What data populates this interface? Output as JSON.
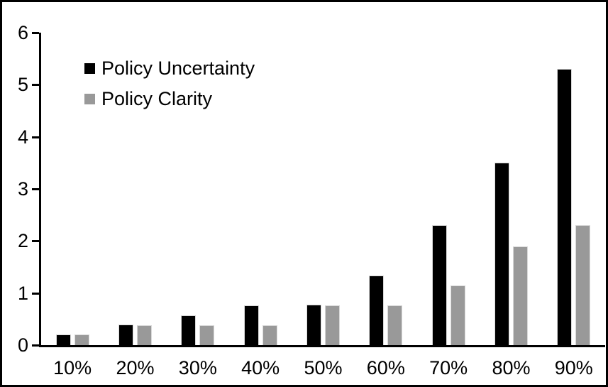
{
  "figure": {
    "background": "#ffffff",
    "frame_color": "#000000",
    "bar_outline_color": "#d9d9d9"
  },
  "chart_data": {
    "type": "bar",
    "title": "",
    "xlabel": "",
    "ylabel": "",
    "categories": [
      "10%",
      "20%",
      "30%",
      "40%",
      "50%",
      "60%",
      "70%",
      "80%",
      "90%"
    ],
    "series": [
      {
        "name": "Policy Uncertainty",
        "color": "#000000",
        "values": [
          0.2,
          0.4,
          0.57,
          0.77,
          0.78,
          1.33,
          2.3,
          3.5,
          5.3
        ]
      },
      {
        "name": "Policy Clarity",
        "color": "#999999",
        "values": [
          0.2,
          0.38,
          0.38,
          0.38,
          0.77,
          0.77,
          1.15,
          1.9,
          2.3
        ]
      }
    ],
    "ylim": [
      0,
      6
    ],
    "y_ticks": [
      6,
      5,
      4,
      3,
      2,
      1,
      0
    ],
    "grid": false,
    "legend_position": "upper-left-inside"
  }
}
